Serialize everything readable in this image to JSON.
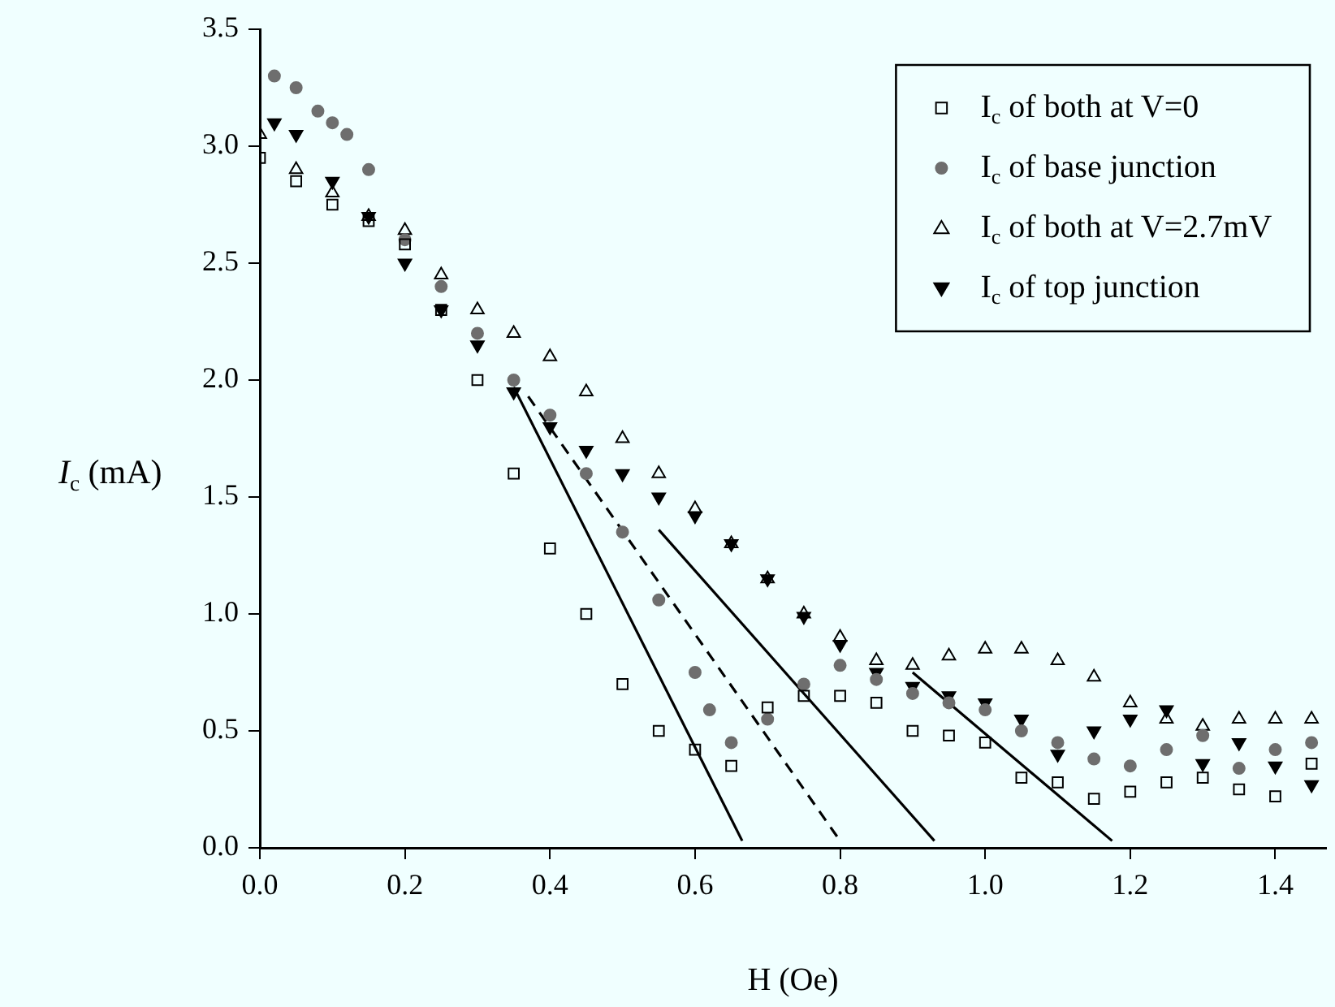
{
  "chart_data": {
    "type": "scatter",
    "xlabel": "H (Oe)",
    "ylabel": "I$_{c}$ (mA)",
    "xlim": [
      0,
      1.47
    ],
    "ylim": [
      0,
      3.5
    ],
    "xticks": [
      {
        "value": 0,
        "label": "0.0"
      },
      {
        "value": 0.2,
        "label": "0.2"
      },
      {
        "value": 0.4,
        "label": "0.4"
      },
      {
        "value": 0.6,
        "label": "0.6"
      },
      {
        "value": 0.8,
        "label": "0.8"
      },
      {
        "value": 1,
        "label": "1.0"
      },
      {
        "value": 1.2,
        "label": "1.2"
      },
      {
        "value": 1.4,
        "label": "1.4"
      }
    ],
    "yticks": [
      {
        "value": 0,
        "label": "0.0"
      },
      {
        "value": 0.5,
        "label": "0.5"
      },
      {
        "value": 1,
        "label": "1.0"
      },
      {
        "value": 1.5,
        "label": "1.5"
      },
      {
        "value": 2,
        "label": "2.0"
      },
      {
        "value": 2.5,
        "label": "2.5"
      },
      {
        "value": 3,
        "label": "3.0"
      },
      {
        "value": 3.5,
        "label": "3.5"
      }
    ],
    "legend": "top right",
    "grid": false,
    "series": [
      {
        "name": "I$_{c}$ of both at V=0",
        "marker": "square-open",
        "color": "#000000",
        "x": [
          0,
          0.05,
          0.1,
          0.15,
          0.2,
          0.25,
          0.3,
          0.35,
          0.4,
          0.45,
          0.5,
          0.55,
          0.6,
          0.65,
          0.7,
          0.75,
          0.8,
          0.85,
          0.9,
          0.95,
          1.0,
          1.05,
          1.1,
          1.15,
          1.2,
          1.25,
          1.3,
          1.35,
          1.4,
          1.45
        ],
        "values": [
          2.95,
          2.85,
          2.75,
          2.68,
          2.58,
          2.3,
          2.0,
          1.6,
          1.28,
          1.0,
          0.7,
          0.5,
          0.42,
          0.35,
          0.6,
          0.65,
          0.65,
          0.62,
          0.5,
          0.48,
          0.45,
          0.3,
          0.28,
          0.21,
          0.24,
          0.28,
          0.3,
          0.25,
          0.22,
          0.36
        ]
      },
      {
        "name": "I$_{c}$ of base junction",
        "marker": "circle",
        "color": "#6e6e6e",
        "x": [
          0.02,
          0.05,
          0.08,
          0.1,
          0.12,
          0.15,
          0.2,
          0.25,
          0.3,
          0.35,
          0.4,
          0.45,
          0.5,
          0.55,
          0.6,
          0.62,
          0.65,
          0.7,
          0.75,
          0.8,
          0.85,
          0.9,
          0.95,
          1.0,
          1.05,
          1.1,
          1.15,
          1.2,
          1.25,
          1.3,
          1.35,
          1.4,
          1.45
        ],
        "values": [
          3.3,
          3.25,
          3.15,
          3.1,
          3.05,
          2.9,
          2.6,
          2.4,
          2.2,
          2.0,
          1.85,
          1.6,
          1.35,
          1.06,
          0.75,
          0.59,
          0.45,
          0.55,
          0.7,
          0.78,
          0.72,
          0.66,
          0.62,
          0.59,
          0.5,
          0.45,
          0.38,
          0.35,
          0.42,
          0.48,
          0.34,
          0.42,
          0.45
        ]
      },
      {
        "name": "I$_{c}$ of both at V=2.7mV",
        "marker": "triangle-open",
        "color": "#000000",
        "x": [
          0,
          0.05,
          0.1,
          0.15,
          0.2,
          0.25,
          0.3,
          0.35,
          0.4,
          0.45,
          0.5,
          0.55,
          0.6,
          0.65,
          0.7,
          0.75,
          0.8,
          0.85,
          0.9,
          0.95,
          1.0,
          1.05,
          1.1,
          1.15,
          1.2,
          1.25,
          1.3,
          1.35,
          1.4,
          1.45
        ],
        "values": [
          3.05,
          2.9,
          2.8,
          2.7,
          2.64,
          2.45,
          2.3,
          2.2,
          2.1,
          1.95,
          1.75,
          1.6,
          1.45,
          1.3,
          1.15,
          1.0,
          0.9,
          0.8,
          0.78,
          0.82,
          0.85,
          0.85,
          0.8,
          0.73,
          0.62,
          0.55,
          0.52,
          0.55,
          0.55,
          0.55
        ]
      },
      {
        "name": "I$_{c}$ of top junction",
        "marker": "triangle-down",
        "color": "#000000",
        "x": [
          0.02,
          0.05,
          0.1,
          0.15,
          0.2,
          0.25,
          0.3,
          0.35,
          0.4,
          0.45,
          0.5,
          0.55,
          0.6,
          0.65,
          0.7,
          0.75,
          0.8,
          0.85,
          0.9,
          0.95,
          1.0,
          1.05,
          1.1,
          1.15,
          1.2,
          1.25,
          1.3,
          1.35,
          1.4,
          1.45
        ],
        "values": [
          3.1,
          3.05,
          2.85,
          2.7,
          2.5,
          2.3,
          2.15,
          1.95,
          1.8,
          1.7,
          1.6,
          1.5,
          1.42,
          1.3,
          1.15,
          0.99,
          0.87,
          0.75,
          0.69,
          0.65,
          0.62,
          0.55,
          0.4,
          0.5,
          0.55,
          0.59,
          0.36,
          0.45,
          0.35,
          0.27
        ]
      },
      {
        "type": "line",
        "line_style": "solid",
        "color": "#000000",
        "x": [
          0.35,
          0.665
        ],
        "values": [
          1.97,
          0.03
        ]
      },
      {
        "type": "line",
        "line_style": "dashed",
        "color": "#000000",
        "x": [
          0.37,
          0.8
        ],
        "values": [
          1.93,
          0.03
        ]
      },
      {
        "type": "line",
        "line_style": "solid",
        "color": "#000000",
        "x": [
          0.55,
          0.93
        ],
        "values": [
          1.36,
          0.03
        ]
      },
      {
        "type": "line",
        "line_style": "solid",
        "color": "#000000",
        "x": [
          0.9,
          1.175
        ],
        "values": [
          0.75,
          0.03
        ]
      }
    ]
  }
}
